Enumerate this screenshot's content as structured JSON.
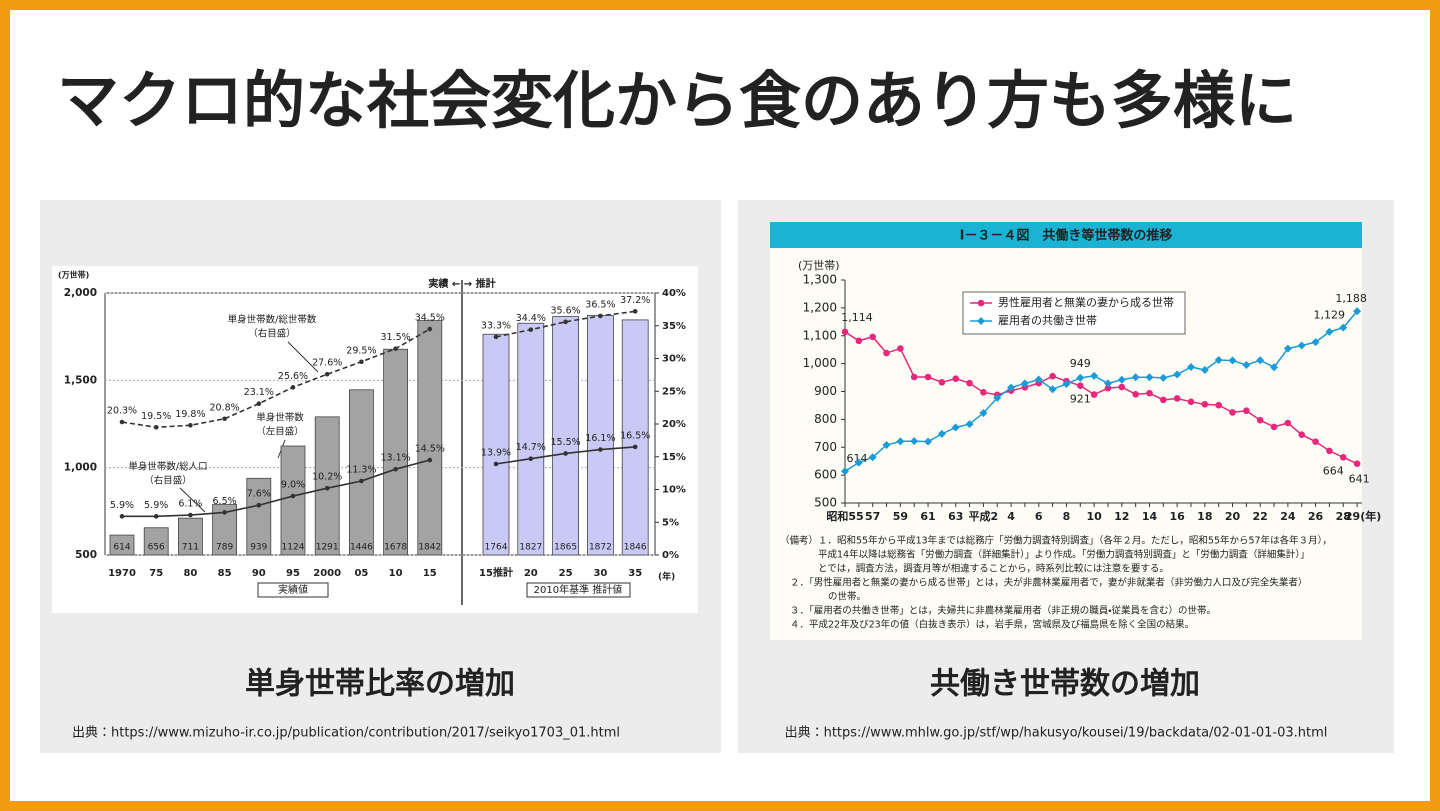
{
  "title": "マクロ的な社会変化から食のあり方も多様に",
  "panels": [
    {
      "caption": "単身世帯比率の増加",
      "source": "出典：https://www.mizuho-ir.co.jp/publication/contribution/2017/seikyo1703_01.html",
      "chart": {
        "type": "bar",
        "unit": "(万世帯)",
        "x_unit": "(年)",
        "period_label": "実績 ← → 推計",
        "group_labels": [
          "実績値",
          "2010年基準 推計値"
        ],
        "categories": [
          "1970",
          "75",
          "80",
          "85",
          "90",
          "95",
          "2000",
          "05",
          "10",
          "15",
          "15推計",
          "20",
          "25",
          "30",
          "35"
        ],
        "bar_name": "単身世帯数",
        "bar_name_note": "（左目盛）",
        "values": [
          614,
          656,
          711,
          789,
          939,
          1124,
          1291,
          1446,
          1678,
          1842,
          1764,
          1827,
          1865,
          1872,
          1846
        ],
        "bar_colors": [
          "#a3a3a3",
          "#a3a3a3",
          "#a3a3a3",
          "#a3a3a3",
          "#a3a3a3",
          "#a3a3a3",
          "#a3a3a3",
          "#a3a3a3",
          "#a3a3a3",
          "#a3a3a3",
          "#c9c9f5",
          "#c9c9f5",
          "#c9c9f5",
          "#c9c9f5",
          "#c9c9f5"
        ],
        "series": [
          {
            "name": "単身世帯数/総世帯数",
            "name_note": "（右目盛）",
            "axis": "y2",
            "color": "#333333",
            "dashed": true,
            "values": [
              20.3,
              19.5,
              19.8,
              20.8,
              23.1,
              25.6,
              27.6,
              29.5,
              31.5,
              34.5,
              33.3,
              34.4,
              35.6,
              36.5,
              37.2
            ],
            "value_labels": [
              "20.3%",
              "19.5%",
              "19.8%",
              "20.8%",
              "23.1%",
              "25.6%",
              "27.6%",
              "29.5%",
              "31.5%",
              "34.5%",
              "33.3%",
              "34.4%",
              "35.6%",
              "36.5%",
              "37.2%"
            ]
          },
          {
            "name": "単身世帯数/総人口",
            "name_note": "（右目盛）",
            "axis": "y2",
            "color": "#333333",
            "dashed": false,
            "values": [
              5.9,
              5.9,
              6.1,
              6.5,
              7.6,
              9.0,
              10.2,
              11.3,
              13.1,
              14.5,
              13.9,
              14.7,
              15.5,
              16.1,
              16.5
            ],
            "value_labels": [
              "5.9%",
              "5.9%",
              "6.1%",
              "6.5%",
              "7.6%",
              "9.0%",
              "10.2%",
              "11.3%",
              "13.1%",
              "14.5%",
              "13.9%",
              "14.7%",
              "15.5%",
              "16.1%",
              "16.5%"
            ]
          }
        ],
        "ylim": [
          500,
          2000
        ],
        "yticks": [
          500,
          {
            "value": 1000,
            "label": "1,000"
          },
          {
            "value": 1500,
            "label": "1,500"
          },
          {
            "value": 2000,
            "label": "2,000"
          }
        ],
        "y2lim": [
          0,
          40
        ],
        "y2ticks": [
          {
            "value": 0,
            "label": "0%"
          },
          {
            "value": 5,
            "label": "5%"
          },
          {
            "value": 10,
            "label": "10%"
          },
          {
            "value": 15,
            "label": "15%"
          },
          {
            "value": 20,
            "label": "20%"
          },
          {
            "value": 25,
            "label": "25%"
          },
          {
            "value": 30,
            "label": "30%"
          },
          {
            "value": 35,
            "label": "35%"
          },
          {
            "value": 40,
            "label": "40%"
          }
        ],
        "grid": true
      }
    },
    {
      "caption": "共働き世帯数の増加",
      "source": "出典：https://www.mhlw.go.jp/stf/wp/hakusyo/kousei/19/backdata/02-01-01-03.html",
      "chart": {
        "type": "line",
        "title": "Ⅰ－３－４図　共働き等世帯数の推移",
        "unit": "(万世帯)",
        "categories": [
          "昭和55",
          null,
          "57",
          null,
          "59",
          null,
          "61",
          null,
          "63",
          null,
          "平成2",
          null,
          "4",
          null,
          "6",
          null,
          "8",
          null,
          "10",
          null,
          "12",
          null,
          "14",
          null,
          "16",
          null,
          "18",
          null,
          "20",
          null,
          "22",
          null,
          "24",
          null,
          "26",
          null,
          "28",
          "29(年)"
        ],
        "series": [
          {
            "name": "男性雇用者と無業の妻から成る世帯",
            "color": "#e6287d",
            "marker": "circle",
            "values": [
              1114,
              1082,
              1096,
              1038,
              1054,
              952,
              952,
              933,
              946,
              930,
              897,
              888,
              903,
              915,
              930,
              955,
              937,
              921,
              889,
              912,
              916,
              890,
              894,
              870,
              875,
              863,
              854,
              851,
              825,
              831,
              797,
              773,
              787,
              745,
              720,
              687,
              664,
              641
            ],
            "value_labels": [
              "1,114",
              null,
              null,
              null,
              null,
              null,
              null,
              null,
              null,
              null,
              null,
              null,
              null,
              null,
              null,
              null,
              null,
              "921",
              null,
              null,
              null,
              null,
              null,
              null,
              null,
              null,
              null,
              null,
              null,
              null,
              null,
              null,
              null,
              null,
              null,
              null,
              "664",
              "641"
            ]
          },
          {
            "name": "雇用者の共働き世帯",
            "color": "#1b9bd7",
            "marker": "diamond",
            "values": [
              614,
              645,
              664,
              708,
              721,
              722,
              720,
              748,
              771,
              783,
              823,
              877,
              914,
              929,
              943,
              908,
              927,
              949,
              956,
              929,
              942,
              951,
              951,
              949,
              961,
              988,
              977,
              1013,
              1011,
              995,
              1012,
              987,
              1054,
              1065,
              1077,
              1114,
              1129,
              1188
            ],
            "value_labels": [
              "614",
              null,
              null,
              null,
              null,
              null,
              null,
              null,
              null,
              null,
              null,
              null,
              null,
              null,
              null,
              null,
              null,
              "949",
              null,
              null,
              null,
              null,
              null,
              null,
              null,
              null,
              null,
              null,
              null,
              null,
              null,
              null,
              null,
              null,
              null,
              null,
              "1,129",
              "1,188"
            ]
          }
        ],
        "ylim": [
          500,
          1300
        ],
        "yticks": [
          500,
          600,
          700,
          800,
          900,
          {
            "value": 1000,
            "label": "1,000"
          },
          {
            "value": 1100,
            "label": "1,100"
          },
          {
            "value": 1200,
            "label": "1,200"
          },
          {
            "value": 1300,
            "label": "1,300"
          }
        ],
        "notes": [
          "（備考）１．昭和55年から平成13年までは総務庁「労働力調査特別調査」（各年２月。ただし，昭和55年から57年は各年３月），",
          "平成14年以降は総務省「労働力調査（詳細集計）」より作成。「労働力調査特別調査」と「労働力調査（詳細集計）」",
          "とでは，調査方法，調査月等が相違することから，時系列比較には注意を要する。",
          "２．「男性雇用者と無業の妻から成る世帯」とは，夫が非農林業雇用者で，妻が非就業者（非労働力人口及び完全失業者）",
          "の世帯。",
          "３．「雇用者の共働き世帯」とは，夫婦共に非農林業雇用者（非正規の職員・従業員を含む）の世帯。",
          "４．平成22年及び23年の値（白抜き表示）は，岩手県，宮城県及び福島県を除く全国の結果。"
        ]
      }
    }
  ]
}
